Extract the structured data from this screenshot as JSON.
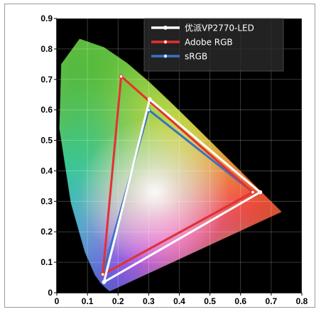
{
  "chart_data": {
    "type": "scatter",
    "title": "",
    "xlabel": "",
    "ylabel": "",
    "xlim": [
      0,
      0.8
    ],
    "ylim": [
      0,
      0.9
    ],
    "x_ticks": [
      "0",
      "0.1",
      "0.2",
      "0.3",
      "0.4",
      "0.5",
      "0.6",
      "0.7",
      "0.8"
    ],
    "y_ticks": [
      "0",
      "0.1",
      "0.2",
      "0.3",
      "0.4",
      "0.5",
      "0.6",
      "0.7",
      "0.8",
      "0.9"
    ],
    "grid": true,
    "background": "#000000",
    "legend_position": "top-right",
    "series": [
      {
        "name": "优派VP2770-LED",
        "color": "#ffffff",
        "x": [
          0.664,
          0.303,
          0.154,
          0.664
        ],
        "y": [
          0.33,
          0.635,
          0.035,
          0.33
        ]
      },
      {
        "name": "Adobe RGB",
        "color": "#e53030",
        "x": [
          0.64,
          0.21,
          0.15,
          0.64
        ],
        "y": [
          0.33,
          0.71,
          0.06,
          0.33
        ]
      },
      {
        "name": "sRGB",
        "color": "#3a72c4",
        "x": [
          0.64,
          0.3,
          0.15,
          0.64
        ],
        "y": [
          0.33,
          0.6,
          0.06,
          0.33
        ]
      }
    ],
    "spectral_locus": {
      "x": [
        0.1741,
        0.1738,
        0.1736,
        0.1733,
        0.1726,
        0.1714,
        0.1689,
        0.1644,
        0.1566,
        0.144,
        0.1241,
        0.0913,
        0.0454,
        0.0082,
        0.0139,
        0.0743,
        0.1547,
        0.2296,
        0.3016,
        0.3731,
        0.4441,
        0.5125,
        0.5752,
        0.627,
        0.6658,
        0.6915,
        0.7079,
        0.719,
        0.7347
      ],
      "y": [
        0.005,
        0.0049,
        0.0049,
        0.0048,
        0.0048,
        0.0051,
        0.0069,
        0.0109,
        0.0177,
        0.0297,
        0.0578,
        0.1327,
        0.295,
        0.5384,
        0.7502,
        0.8338,
        0.8059,
        0.7543,
        0.6923,
        0.6245,
        0.5547,
        0.4866,
        0.4242,
        0.3725,
        0.334,
        0.3083,
        0.292,
        0.2809,
        0.2653
      ]
    }
  }
}
